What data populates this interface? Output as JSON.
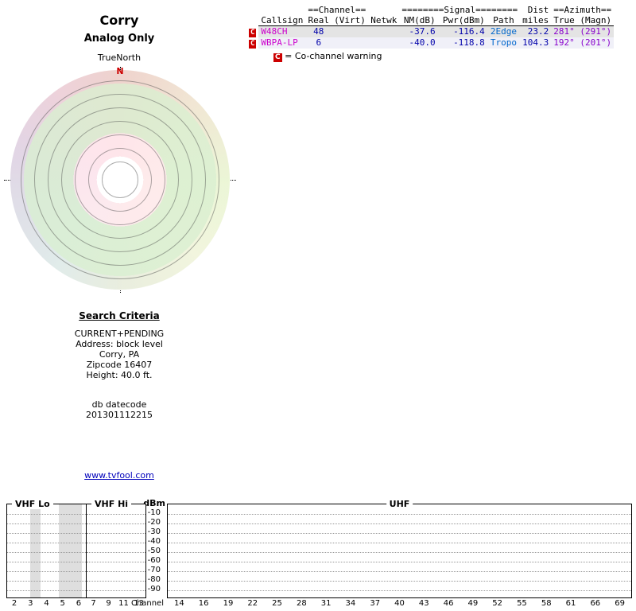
{
  "colors": {
    "callsign": "#cc00cc",
    "number": "#0000aa",
    "path": "#0066cc",
    "azimuth": "#8800cc",
    "warn_bg": "#cc0000",
    "warn_fg": "#ffffff",
    "link": "#0000bb",
    "row_odd_bg": "#e4e4e4",
    "row_even_bg": "#f0f0f8",
    "north": "#cc0000"
  },
  "header": {
    "title": "Corry",
    "subtitle": "Analog Only"
  },
  "radar": {
    "true_north": "TrueNorth",
    "north": "N"
  },
  "table": {
    "group": {
      "channel": "==Channel==",
      "signal": "========Signal========",
      "dist": "Dist",
      "azimuth": "==Azimuth=="
    },
    "cols": {
      "callsign": "Callsign",
      "real": "Real",
      "virt": "(Virt)",
      "netwk": "Netwk",
      "nm": "NM(dB)",
      "pwr": "Pwr(dBm)",
      "path": "Path",
      "miles": "miles",
      "true_magn": "True (Magn)"
    },
    "rows": [
      {
        "warn": "C",
        "callsign": "W48CH",
        "real": "48",
        "virt": "",
        "netwk": "",
        "nm": "-37.6",
        "pwr": "-116.4",
        "path": "2Edge",
        "miles": "23.2",
        "azimuth": "281° (291°)"
      },
      {
        "warn": "C",
        "callsign": "WBPA-LP",
        "real": "6",
        "virt": "",
        "netwk": "",
        "nm": "-40.0",
        "pwr": "-118.8",
        "path": "Tropo",
        "miles": "104.3",
        "azimuth": "192° (201°)"
      }
    ],
    "legend": {
      "symbol": "C",
      "text": "= Co-channel warning"
    }
  },
  "search": {
    "heading": "Search Criteria",
    "lines": [
      "CURRENT+PENDING",
      "Address: block level",
      "Corry, PA",
      "Zipcode 16407",
      "Height: 40.0 ft."
    ],
    "datecode_label": "db datecode",
    "datecode_value": "201301112215"
  },
  "link": {
    "url_text": "www.tvfool.com"
  },
  "chart_data": {
    "type": "bar",
    "xlabel": "Channel",
    "ylabel": "dBm",
    "yticks": [
      "-10",
      "-20",
      "-30",
      "-40",
      "-50",
      "-60",
      "-70",
      "-80",
      "-90"
    ],
    "ylim": [
      -90,
      -10
    ],
    "grid": "dotted-horizontal",
    "legend_position": "none",
    "panels": [
      {
        "label": "VHF Lo",
        "channels": [
          "2",
          "3",
          "4",
          "5",
          "6"
        ]
      },
      {
        "label": "VHF Hi",
        "channels": [
          "7",
          "9",
          "11",
          "13"
        ]
      },
      {
        "label": "UHF",
        "channels": [
          "14",
          "16",
          "19",
          "22",
          "25",
          "28",
          "31",
          "34",
          "37",
          "40",
          "43",
          "46",
          "49",
          "52",
          "55",
          "58",
          "61",
          "66",
          "69"
        ]
      }
    ],
    "bars": [],
    "shaded_bands": [
      {
        "panel": "VHF Lo",
        "left_pct": 29,
        "width_pct": 13
      },
      {
        "panel": "VHF Lo",
        "left_pct": 66,
        "width_pct": 29
      }
    ]
  }
}
